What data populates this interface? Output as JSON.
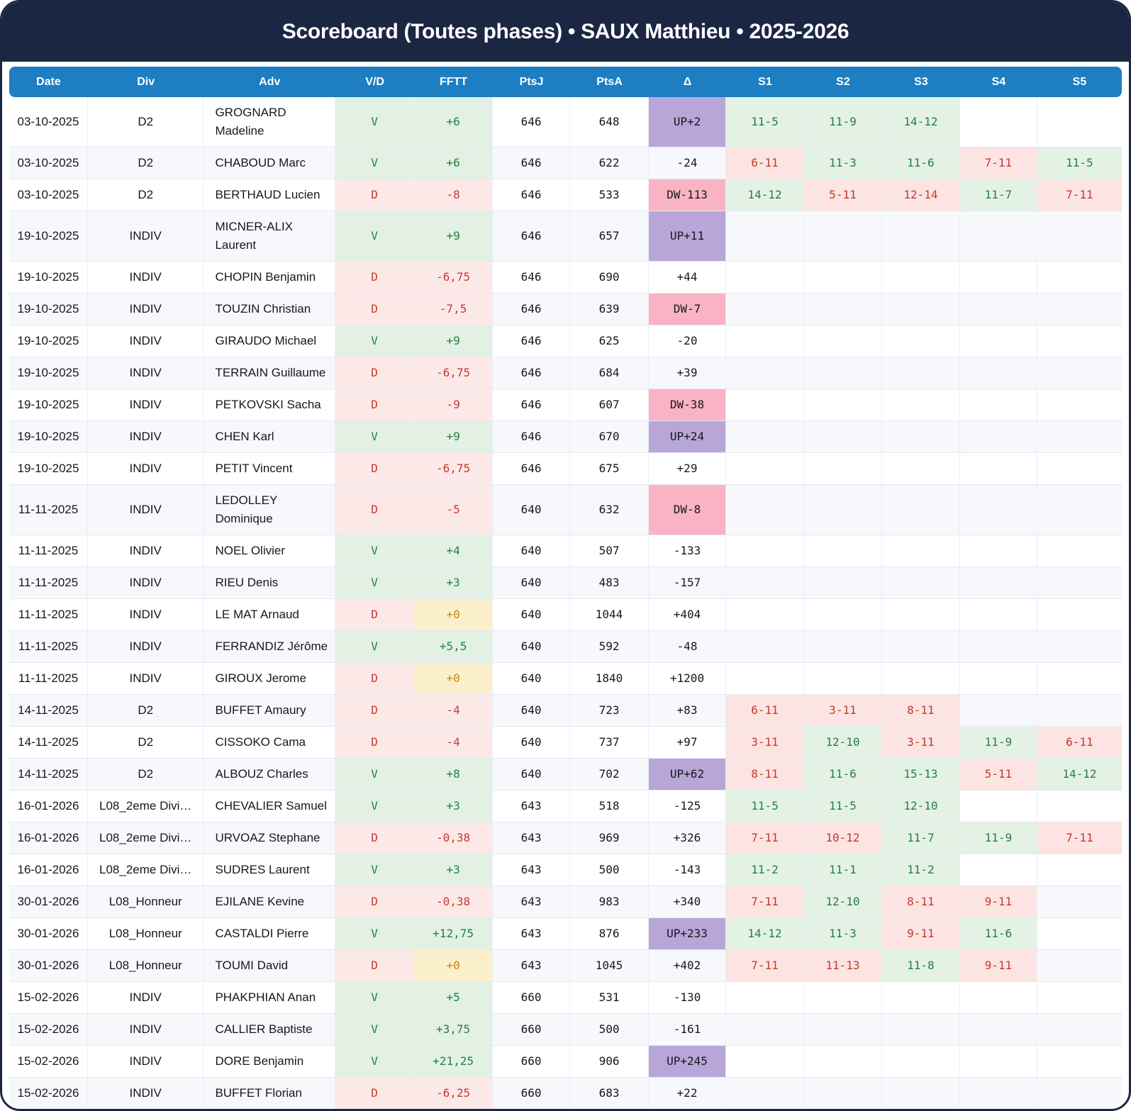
{
  "title": "Scoreboard (Toutes phases) • SAUX Matthieu • 2025-2026",
  "columns": [
    "Date",
    "Div",
    "Adv",
    "V/D",
    "FFTT",
    "PtsJ",
    "PtsA",
    "Δ",
    "S1",
    "S2",
    "S3",
    "S4",
    "S5"
  ],
  "colors": {
    "navy": "#1B2642",
    "header_blue": "#1D7EC3",
    "win_green_text": "#27803B",
    "loss_red_text": "#C43A31",
    "win_green_bg": "#E2F1E3",
    "loss_red_bg": "#FCE9E7",
    "up_purple_bg": "#B8A6D9",
    "down_pink_bg": "#F9B3C5",
    "zero_yellow_bg": "#FCF0CC",
    "zero_yellow_text": "#BE8A14"
  },
  "rows": [
    {
      "date": "03-10-2025",
      "div": "D2",
      "adv": "GROGNARD Madeline",
      "vd": "V",
      "fftt": "+6",
      "ptsj": "646",
      "ptsa": "648",
      "delta": "UP+2",
      "sets": [
        "11-5",
        "11-9",
        "14-12"
      ]
    },
    {
      "date": "03-10-2025",
      "div": "D2",
      "adv": "CHABOUD Marc",
      "vd": "V",
      "fftt": "+6",
      "ptsj": "646",
      "ptsa": "622",
      "delta": "-24",
      "sets": [
        "6-11",
        "11-3",
        "11-6",
        "7-11",
        "11-5"
      ]
    },
    {
      "date": "03-10-2025",
      "div": "D2",
      "adv": "BERTHAUD Lucien",
      "vd": "D",
      "fftt": "-8",
      "ptsj": "646",
      "ptsa": "533",
      "delta": "DW-113",
      "sets": [
        "14-12",
        "5-11",
        "12-14",
        "11-7",
        "7-11"
      ]
    },
    {
      "date": "19-10-2025",
      "div": "INDIV",
      "adv": "MICNER-ALIX Laurent",
      "vd": "V",
      "fftt": "+9",
      "ptsj": "646",
      "ptsa": "657",
      "delta": "UP+11",
      "sets": []
    },
    {
      "date": "19-10-2025",
      "div": "INDIV",
      "adv": "CHOPIN Benjamin",
      "vd": "D",
      "fftt": "-6,75",
      "ptsj": "646",
      "ptsa": "690",
      "delta": "+44",
      "sets": []
    },
    {
      "date": "19-10-2025",
      "div": "INDIV",
      "adv": "TOUZIN Christian",
      "vd": "D",
      "fftt": "-7,5",
      "ptsj": "646",
      "ptsa": "639",
      "delta": "DW-7",
      "sets": []
    },
    {
      "date": "19-10-2025",
      "div": "INDIV",
      "adv": "GIRAUDO Michael",
      "vd": "V",
      "fftt": "+9",
      "ptsj": "646",
      "ptsa": "625",
      "delta": "-20",
      "sets": []
    },
    {
      "date": "19-10-2025",
      "div": "INDIV",
      "adv": "TERRAIN Guillaume",
      "vd": "D",
      "fftt": "-6,75",
      "ptsj": "646",
      "ptsa": "684",
      "delta": "+39",
      "sets": []
    },
    {
      "date": "19-10-2025",
      "div": "INDIV",
      "adv": "PETKOVSKI Sacha",
      "vd": "D",
      "fftt": "-9",
      "ptsj": "646",
      "ptsa": "607",
      "delta": "DW-38",
      "sets": []
    },
    {
      "date": "19-10-2025",
      "div": "INDIV",
      "adv": "CHEN Karl",
      "vd": "V",
      "fftt": "+9",
      "ptsj": "646",
      "ptsa": "670",
      "delta": "UP+24",
      "sets": []
    },
    {
      "date": "19-10-2025",
      "div": "INDIV",
      "adv": "PETIT Vincent",
      "vd": "D",
      "fftt": "-6,75",
      "ptsj": "646",
      "ptsa": "675",
      "delta": "+29",
      "sets": []
    },
    {
      "date": "11-11-2025",
      "div": "INDIV",
      "adv": "LEDOLLEY Dominique",
      "vd": "D",
      "fftt": "-5",
      "ptsj": "640",
      "ptsa": "632",
      "delta": "DW-8",
      "sets": []
    },
    {
      "date": "11-11-2025",
      "div": "INDIV",
      "adv": "NOEL Olivier",
      "vd": "V",
      "fftt": "+4",
      "ptsj": "640",
      "ptsa": "507",
      "delta": "-133",
      "sets": []
    },
    {
      "date": "11-11-2025",
      "div": "INDIV",
      "adv": "RIEU Denis",
      "vd": "V",
      "fftt": "+3",
      "ptsj": "640",
      "ptsa": "483",
      "delta": "-157",
      "sets": []
    },
    {
      "date": "11-11-2025",
      "div": "INDIV",
      "adv": "LE MAT Arnaud",
      "vd": "D",
      "fftt": "+0",
      "ptsj": "640",
      "ptsa": "1044",
      "delta": "+404",
      "sets": []
    },
    {
      "date": "11-11-2025",
      "div": "INDIV",
      "adv": "FERRANDIZ Jérôme",
      "vd": "V",
      "fftt": "+5,5",
      "ptsj": "640",
      "ptsa": "592",
      "delta": "-48",
      "sets": []
    },
    {
      "date": "11-11-2025",
      "div": "INDIV",
      "adv": "GIROUX Jerome",
      "vd": "D",
      "fftt": "+0",
      "ptsj": "640",
      "ptsa": "1840",
      "delta": "+1200",
      "sets": []
    },
    {
      "date": "14-11-2025",
      "div": "D2",
      "adv": "BUFFET Amaury",
      "vd": "D",
      "fftt": "-4",
      "ptsj": "640",
      "ptsa": "723",
      "delta": "+83",
      "sets": [
        "6-11",
        "3-11",
        "8-11"
      ]
    },
    {
      "date": "14-11-2025",
      "div": "D2",
      "adv": "CISSOKO Cama",
      "vd": "D",
      "fftt": "-4",
      "ptsj": "640",
      "ptsa": "737",
      "delta": "+97",
      "sets": [
        "3-11",
        "12-10",
        "3-11",
        "11-9",
        "6-11"
      ]
    },
    {
      "date": "14-11-2025",
      "div": "D2",
      "adv": "ALBOUZ Charles",
      "vd": "V",
      "fftt": "+8",
      "ptsj": "640",
      "ptsa": "702",
      "delta": "UP+62",
      "sets": [
        "8-11",
        "11-6",
        "15-13",
        "5-11",
        "14-12"
      ]
    },
    {
      "date": "16-01-2026",
      "div": "L08_2eme Divi…",
      "adv": "CHEVALIER Samuel",
      "vd": "V",
      "fftt": "+3",
      "ptsj": "643",
      "ptsa": "518",
      "delta": "-125",
      "sets": [
        "11-5",
        "11-5",
        "12-10"
      ]
    },
    {
      "date": "16-01-2026",
      "div": "L08_2eme Divi…",
      "adv": "URVOAZ Stephane",
      "vd": "D",
      "fftt": "-0,38",
      "ptsj": "643",
      "ptsa": "969",
      "delta": "+326",
      "sets": [
        "7-11",
        "10-12",
        "11-7",
        "11-9",
        "7-11"
      ]
    },
    {
      "date": "16-01-2026",
      "div": "L08_2eme Divi…",
      "adv": "SUDRES Laurent",
      "vd": "V",
      "fftt": "+3",
      "ptsj": "643",
      "ptsa": "500",
      "delta": "-143",
      "sets": [
        "11-2",
        "11-1",
        "11-2"
      ]
    },
    {
      "date": "30-01-2026",
      "div": "L08_Honneur",
      "adv": "EJILANE Kevine",
      "vd": "D",
      "fftt": "-0,38",
      "ptsj": "643",
      "ptsa": "983",
      "delta": "+340",
      "sets": [
        "7-11",
        "12-10",
        "8-11",
        "9-11"
      ]
    },
    {
      "date": "30-01-2026",
      "div": "L08_Honneur",
      "adv": "CASTALDI Pierre",
      "vd": "V",
      "fftt": "+12,75",
      "ptsj": "643",
      "ptsa": "876",
      "delta": "UP+233",
      "sets": [
        "14-12",
        "11-3",
        "9-11",
        "11-6"
      ]
    },
    {
      "date": "30-01-2026",
      "div": "L08_Honneur",
      "adv": "TOUMI David",
      "vd": "D",
      "fftt": "+0",
      "ptsj": "643",
      "ptsa": "1045",
      "delta": "+402",
      "sets": [
        "7-11",
        "11-13",
        "11-8",
        "9-11"
      ]
    },
    {
      "date": "15-02-2026",
      "div": "INDIV",
      "adv": "PHAKPHIAN Anan",
      "vd": "V",
      "fftt": "+5",
      "ptsj": "660",
      "ptsa": "531",
      "delta": "-130",
      "sets": []
    },
    {
      "date": "15-02-2026",
      "div": "INDIV",
      "adv": "CALLIER Baptiste",
      "vd": "V",
      "fftt": "+3,75",
      "ptsj": "660",
      "ptsa": "500",
      "delta": "-161",
      "sets": []
    },
    {
      "date": "15-02-2026",
      "div": "INDIV",
      "adv": "DORE Benjamin",
      "vd": "V",
      "fftt": "+21,25",
      "ptsj": "660",
      "ptsa": "906",
      "delta": "UP+245",
      "sets": []
    },
    {
      "date": "15-02-2026",
      "div": "INDIV",
      "adv": "BUFFET Florian",
      "vd": "D",
      "fftt": "-6,25",
      "ptsj": "660",
      "ptsa": "683",
      "delta": "+22",
      "sets": []
    }
  ]
}
